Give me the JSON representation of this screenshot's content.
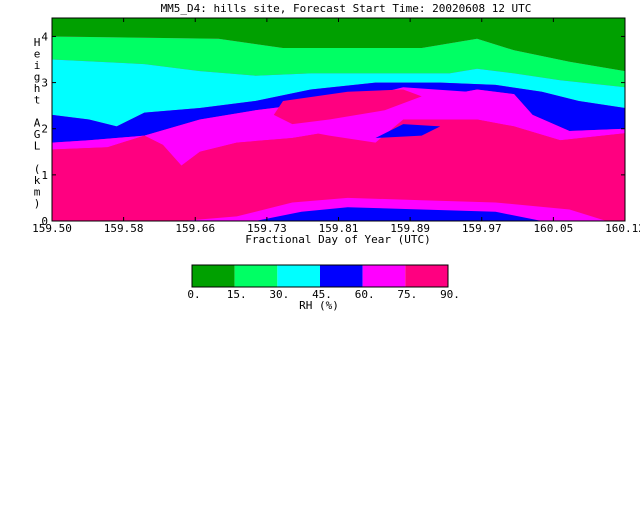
{
  "chart_data": {
    "type": "heatmap",
    "title": "MM5_D4: hills site,  Forecast Start Time: 20020608 12 UTC",
    "xlabel": "Fractional Day of Year (UTC)",
    "ylabel": "Height AGL (km)",
    "xlim": [
      159.5,
      160.12
    ],
    "ylim": [
      0,
      4.4
    ],
    "x_ticks": [
      "159.50",
      "159.58",
      "159.66",
      "159.73",
      "159.81",
      "159.89",
      "159.97",
      "160.05",
      "160.12"
    ],
    "y_ticks": [
      "0",
      "1",
      "2",
      "3",
      "4"
    ],
    "colorbar": {
      "label": "RH (%)",
      "ticks": [
        "0.",
        "15.",
        "30.",
        "45.",
        "60.",
        "75.",
        "90."
      ],
      "colors": [
        "#00a000",
        "#00ff64",
        "#00ffff",
        "#0000ff",
        "#ff00ff",
        "#ff0080"
      ]
    },
    "series": [
      {
        "name": "0-15",
        "color": "#00a000",
        "polygon": [
          [
            159.5,
            4.4
          ],
          [
            160.12,
            4.4
          ],
          [
            160.12,
            3.25
          ],
          [
            160.06,
            3.45
          ],
          [
            160.0,
            3.7
          ],
          [
            159.96,
            3.95
          ],
          [
            159.9,
            3.75
          ],
          [
            159.75,
            3.75
          ],
          [
            159.68,
            3.95
          ],
          [
            159.5,
            4.0
          ]
        ]
      },
      {
        "name": "15-30",
        "color": "#00ff64",
        "polygon": [
          [
            159.5,
            4.0
          ],
          [
            159.68,
            3.95
          ],
          [
            159.75,
            3.75
          ],
          [
            159.9,
            3.75
          ],
          [
            159.96,
            3.95
          ],
          [
            160.0,
            3.7
          ],
          [
            160.06,
            3.45
          ],
          [
            160.12,
            3.25
          ],
          [
            160.12,
            2.9
          ],
          [
            160.05,
            3.05
          ],
          [
            160.0,
            3.2
          ],
          [
            159.96,
            3.3
          ],
          [
            159.93,
            3.2
          ],
          [
            159.85,
            3.2
          ],
          [
            159.78,
            3.2
          ],
          [
            159.72,
            3.15
          ],
          [
            159.66,
            3.25
          ],
          [
            159.6,
            3.4
          ],
          [
            159.5,
            3.5
          ]
        ]
      },
      {
        "name": "30-45",
        "color": "#00ffff",
        "polygon": [
          [
            159.5,
            3.5
          ],
          [
            159.6,
            3.4
          ],
          [
            159.66,
            3.25
          ],
          [
            159.72,
            3.15
          ],
          [
            159.78,
            3.2
          ],
          [
            159.85,
            3.2
          ],
          [
            159.93,
            3.2
          ],
          [
            159.96,
            3.3
          ],
          [
            160.0,
            3.2
          ],
          [
            160.05,
            3.05
          ],
          [
            160.12,
            2.9
          ],
          [
            160.12,
            2.45
          ],
          [
            160.07,
            2.6
          ],
          [
            160.03,
            2.8
          ],
          [
            159.98,
            2.95
          ],
          [
            159.92,
            3.0
          ],
          [
            159.85,
            3.0
          ],
          [
            159.78,
            2.85
          ],
          [
            159.72,
            2.6
          ],
          [
            159.66,
            2.45
          ],
          [
            159.6,
            2.35
          ],
          [
            159.57,
            2.05
          ],
          [
            159.54,
            2.2
          ],
          [
            159.5,
            2.3
          ]
        ]
      },
      {
        "name": "45-60",
        "color": "#0000ff",
        "polygon": [
          [
            159.5,
            2.3
          ],
          [
            159.54,
            2.2
          ],
          [
            159.57,
            2.05
          ],
          [
            159.6,
            2.35
          ],
          [
            159.66,
            2.45
          ],
          [
            159.72,
            2.6
          ],
          [
            159.78,
            2.85
          ],
          [
            159.85,
            3.0
          ],
          [
            159.92,
            3.0
          ],
          [
            159.98,
            2.95
          ],
          [
            160.03,
            2.8
          ],
          [
            160.07,
            2.6
          ],
          [
            160.12,
            2.45
          ],
          [
            160.12,
            2.0
          ],
          [
            160.06,
            1.95
          ],
          [
            160.02,
            2.3
          ],
          [
            160.0,
            2.75
          ],
          [
            159.96,
            2.85
          ],
          [
            159.92,
            2.7
          ],
          [
            159.85,
            2.6
          ],
          [
            159.78,
            2.55
          ],
          [
            159.72,
            2.4
          ],
          [
            159.66,
            2.2
          ],
          [
            159.6,
            1.85
          ],
          [
            159.54,
            1.75
          ],
          [
            159.5,
            1.7
          ]
        ]
      },
      {
        "name": "60-75",
        "color": "#ff00ff",
        "polygon": [
          [
            159.5,
            1.7
          ],
          [
            159.54,
            1.75
          ],
          [
            159.6,
            1.85
          ],
          [
            159.66,
            2.2
          ],
          [
            159.72,
            2.4
          ],
          [
            159.78,
            2.55
          ],
          [
            159.85,
            2.6
          ],
          [
            159.92,
            2.7
          ],
          [
            159.96,
            2.85
          ],
          [
            160.0,
            2.75
          ],
          [
            160.02,
            2.3
          ],
          [
            160.06,
            1.95
          ],
          [
            160.12,
            2.0
          ],
          [
            160.12,
            1.9
          ],
          [
            160.05,
            1.75
          ],
          [
            160.0,
            2.05
          ],
          [
            159.96,
            2.2
          ],
          [
            159.9,
            2.2
          ],
          [
            159.85,
            2.2
          ],
          [
            159.82,
            2.0
          ],
          [
            159.76,
            1.8
          ],
          [
            159.7,
            1.7
          ],
          [
            159.66,
            1.5
          ],
          [
            159.64,
            1.2
          ],
          [
            159.62,
            1.65
          ],
          [
            159.6,
            1.85
          ],
          [
            159.56,
            1.6
          ],
          [
            159.5,
            1.55
          ]
        ]
      },
      {
        "name": "75-90",
        "color": "#ff0080",
        "polygon": [
          [
            159.5,
            1.55
          ],
          [
            159.56,
            1.6
          ],
          [
            159.6,
            1.85
          ],
          [
            159.62,
            1.65
          ],
          [
            159.64,
            1.2
          ],
          [
            159.66,
            1.5
          ],
          [
            159.7,
            1.7
          ],
          [
            159.76,
            1.8
          ],
          [
            159.82,
            2.0
          ],
          [
            159.85,
            2.2
          ],
          [
            159.9,
            2.2
          ],
          [
            159.96,
            2.2
          ],
          [
            160.0,
            2.05
          ],
          [
            160.05,
            1.75
          ],
          [
            160.12,
            1.9
          ],
          [
            160.12,
            0.5
          ],
          [
            160.06,
            0.8
          ],
          [
            159.98,
            0.85
          ],
          [
            159.9,
            0.9
          ],
          [
            159.82,
            0.9
          ],
          [
            159.76,
            0.7
          ],
          [
            159.7,
            0.4
          ],
          [
            159.64,
            0.2
          ],
          [
            159.58,
            0.1
          ],
          [
            159.5,
            0.05
          ],
          [
            159.5,
            0
          ]
        ]
      }
    ],
    "overlays": [
      {
        "name": "75-90",
        "color": "#ff0080",
        "polygon": [
          [
            159.5,
            0
          ],
          [
            160.12,
            0
          ],
          [
            160.12,
            0.5
          ],
          [
            160.06,
            0.8
          ],
          [
            159.98,
            0.85
          ],
          [
            159.9,
            0.9
          ],
          [
            159.82,
            0.9
          ],
          [
            159.76,
            0.7
          ],
          [
            159.7,
            0.4
          ],
          [
            159.64,
            0.2
          ],
          [
            159.58,
            0.1
          ],
          [
            159.5,
            0.05
          ]
        ]
      },
      {
        "name": "60-75",
        "color": "#ff00ff",
        "polygon": [
          [
            159.64,
            0
          ],
          [
            160.1,
            0
          ],
          [
            160.06,
            0.25
          ],
          [
            159.98,
            0.4
          ],
          [
            159.9,
            0.45
          ],
          [
            159.82,
            0.5
          ],
          [
            159.76,
            0.4
          ],
          [
            159.7,
            0.1
          ]
        ]
      },
      {
        "name": "45-60",
        "color": "#0000ff",
        "polygon": [
          [
            159.72,
            0
          ],
          [
            160.03,
            0
          ],
          [
            159.98,
            0.2
          ],
          [
            159.9,
            0.25
          ],
          [
            159.82,
            0.3
          ],
          [
            159.77,
            0.2
          ]
        ]
      },
      {
        "name": "60-75",
        "color": "#ff00ff",
        "polygon": [
          [
            159.76,
            2.0
          ],
          [
            159.82,
            2.6
          ],
          [
            159.88,
            2.9
          ],
          [
            159.95,
            2.8
          ],
          [
            159.99,
            2.7
          ],
          [
            159.98,
            2.5
          ],
          [
            159.94,
            2.3
          ],
          [
            159.88,
            2.2
          ],
          [
            159.85,
            1.7
          ],
          [
            159.8,
            1.85
          ]
        ]
      },
      {
        "name": "45-60",
        "color": "#0000ff",
        "polygon": [
          [
            159.85,
            1.8
          ],
          [
            159.88,
            2.1
          ],
          [
            159.92,
            2.05
          ],
          [
            159.9,
            1.85
          ]
        ]
      },
      {
        "name": "75-90",
        "color": "#ff0080",
        "polygon": [
          [
            159.75,
            2.6
          ],
          [
            159.82,
            2.8
          ],
          [
            159.88,
            2.85
          ],
          [
            159.9,
            2.7
          ],
          [
            159.86,
            2.4
          ],
          [
            159.8,
            2.2
          ],
          [
            159.76,
            2.1
          ],
          [
            159.74,
            2.3
          ]
        ]
      }
    ]
  }
}
